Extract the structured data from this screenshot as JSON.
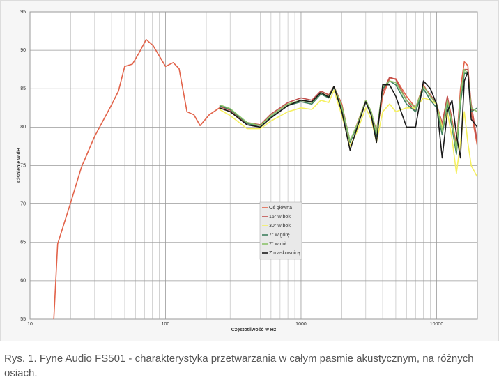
{
  "chart_data": {
    "type": "line",
    "y_label": "Ciśnienie w dB",
    "x_label": "Częstotliwość w Hz",
    "xscale": "log",
    "xlim": [
      10,
      20000
    ],
    "xticks": [
      10,
      100,
      1000,
      10000
    ],
    "xminorgrid": [
      20,
      30,
      40,
      50,
      60,
      70,
      80,
      90,
      200,
      300,
      400,
      500,
      600,
      700,
      800,
      900,
      2000,
      3000,
      4000,
      5000,
      6000,
      7000,
      8000,
      9000
    ],
    "ylim": [
      55,
      95
    ],
    "yticks": [
      55,
      60,
      65,
      70,
      75,
      80,
      85,
      90,
      95
    ],
    "grid": true,
    "legend": "center",
    "series": [
      {
        "name": "Oś główna",
        "color": "#e2634a",
        "x": [
          15,
          16,
          20,
          24,
          30,
          40,
          45,
          50,
          57,
          64,
          72,
          81,
          100,
          114,
          126,
          144,
          162,
          180,
          210,
          250,
          300,
          400,
          500,
          600,
          800,
          1000,
          1200,
          1400,
          1600,
          1750,
          2000,
          2300,
          2600,
          3000,
          3300,
          3600,
          4000,
          4500,
          5000,
          6000,
          7000,
          8000,
          9000,
          10000,
          11000,
          12000,
          13000,
          14000,
          15000,
          16000,
          17000,
          18000,
          20000
        ],
        "values": [
          55,
          64.8,
          70.2,
          74.8,
          78.8,
          82.9,
          84.7,
          87.9,
          88.2,
          89.7,
          91.4,
          90.6,
          87.9,
          88.4,
          87.6,
          82,
          81.6,
          80.2,
          81.6,
          82.5,
          82,
          80.5,
          80.3,
          81.5,
          83,
          83.5,
          83.2,
          84.5,
          84,
          85.3,
          83,
          78,
          80.5,
          83.5,
          82,
          79,
          84,
          86.3,
          86.3,
          84,
          82.5,
          85.5,
          84,
          83,
          80,
          84,
          81,
          77.5,
          85,
          88.5,
          88,
          82,
          77.5
        ]
      },
      {
        "name": "15° w bok",
        "color": "#c0504d",
        "x": [
          250,
          300,
          400,
          500,
          600,
          800,
          1000,
          1200,
          1400,
          1600,
          1750,
          2000,
          2300,
          2600,
          3000,
          3300,
          3600,
          4000,
          4500,
          5000,
          6000,
          7000,
          8000,
          9000,
          10000,
          11000,
          12000,
          13000,
          14000,
          15000,
          16000,
          17000,
          18000,
          20000
        ],
        "values": [
          82.7,
          82.2,
          80.6,
          80.3,
          81.7,
          83.2,
          83.8,
          83.5,
          84.7,
          84.2,
          85.3,
          82.8,
          78.2,
          80.3,
          83.3,
          81.8,
          79.5,
          84.5,
          86.5,
          86.2,
          83.5,
          82,
          85.3,
          84.2,
          83,
          80.5,
          84,
          80.8,
          77,
          84,
          87.5,
          87.5,
          83,
          78
        ]
      },
      {
        "name": "30° w bok",
        "color": "#f5f060",
        "x": [
          250,
          300,
          400,
          500,
          600,
          800,
          1000,
          1200,
          1400,
          1600,
          1750,
          2000,
          2300,
          2600,
          3000,
          3300,
          3600,
          4000,
          4500,
          5000,
          6000,
          7000,
          8000,
          9000,
          10000,
          11000,
          12000,
          13000,
          14000,
          15000,
          16000,
          17000,
          18000,
          20000
        ],
        "values": [
          82.3,
          81.5,
          79.8,
          79.8,
          80.8,
          82,
          82.5,
          82.3,
          83.5,
          83.2,
          84.8,
          81.5,
          77.5,
          79.5,
          82.5,
          81,
          78,
          82,
          83,
          82,
          82.5,
          82.5,
          83.8,
          83.5,
          83,
          80,
          82,
          78.5,
          74,
          78,
          82,
          78,
          75,
          73.5
        ]
      },
      {
        "name": "7° w górę",
        "color": "#3f7f5f",
        "x": [
          250,
          300,
          400,
          500,
          600,
          800,
          1000,
          1200,
          1400,
          1600,
          1750,
          2000,
          2300,
          2600,
          3000,
          3300,
          3600,
          4000,
          4500,
          5000,
          6000,
          7000,
          8000,
          9000,
          10000,
          11000,
          12000,
          13000,
          14000,
          15000,
          16000,
          17000,
          18000,
          20000
        ],
        "values": [
          82.8,
          82.3,
          80.5,
          80,
          81.3,
          82.8,
          83.3,
          83,
          84.3,
          83.8,
          85.2,
          82.5,
          78,
          80.2,
          83.3,
          81.8,
          78.8,
          85,
          86,
          85.5,
          83,
          82,
          85,
          83.5,
          82.5,
          79,
          83,
          80,
          76.5,
          83,
          87,
          87,
          82,
          82.5
        ]
      },
      {
        "name": "7° w dół",
        "color": "#8cc36a",
        "x": [
          250,
          300,
          400,
          500,
          600,
          800,
          1000,
          1200,
          1400,
          1600,
          1750,
          2000,
          2300,
          2600,
          3000,
          3300,
          3600,
          4000,
          4500,
          5000,
          6000,
          7000,
          8000,
          9000,
          10000,
          11000,
          12000,
          13000,
          14000,
          15000,
          16000,
          17000,
          18000,
          20000
        ],
        "values": [
          82.9,
          82.4,
          80.6,
          80.2,
          81.5,
          83,
          83.5,
          83.2,
          84.5,
          84,
          85.3,
          82.7,
          78.2,
          80.4,
          83.5,
          82,
          79.2,
          85.2,
          86,
          85.8,
          83.5,
          82.5,
          85.3,
          84,
          83,
          79.5,
          83.5,
          80.5,
          77,
          84,
          87.5,
          87,
          82.5,
          82
        ]
      },
      {
        "name": "Z maskownicą",
        "color": "#1a1a1a",
        "x": [
          250,
          300,
          400,
          500,
          600,
          800,
          1000,
          1200,
          1400,
          1600,
          1750,
          2000,
          2300,
          2600,
          3000,
          3300,
          3600,
          4000,
          4500,
          5000,
          6000,
          7000,
          8000,
          9000,
          10000,
          11000,
          12000,
          13000,
          14000,
          15000,
          16000,
          17000,
          18000,
          20000
        ],
        "values": [
          82.5,
          82,
          80.3,
          80,
          81.2,
          82.8,
          83.5,
          83.3,
          84.5,
          83.9,
          85.3,
          82,
          77,
          80,
          83.3,
          81.5,
          78,
          85.5,
          85.5,
          84,
          80,
          80,
          86,
          85,
          83,
          76,
          82,
          83.5,
          79,
          76,
          86,
          87.2,
          81,
          80
        ]
      }
    ]
  },
  "caption": "Rys. 1. Fyne Audio FS501 - charakterystyka przetwarzania w całym pasmie akustycznym, na różnych osiach."
}
